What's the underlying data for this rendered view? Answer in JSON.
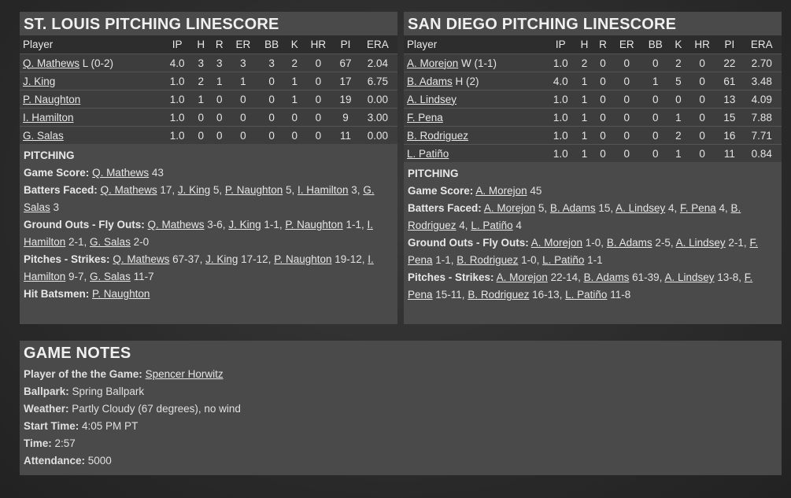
{
  "stl": {
    "title": "ST. LOUIS PITCHING LINESCORE",
    "headers": [
      "Player",
      "IP",
      "H",
      "R",
      "ER",
      "BB",
      "K",
      "HR",
      "PI",
      "ERA"
    ],
    "rows": [
      {
        "name": "Q. Mathews",
        "note": " L (0-2)",
        "stats": [
          "4.0",
          "3",
          "3",
          "3",
          "3",
          "2",
          "0",
          "67",
          "2.04"
        ]
      },
      {
        "name": "J. King",
        "note": "",
        "stats": [
          "1.0",
          "2",
          "1",
          "1",
          "0",
          "1",
          "0",
          "17",
          "6.75"
        ]
      },
      {
        "name": "P. Naughton",
        "note": "",
        "stats": [
          "1.0",
          "1",
          "0",
          "0",
          "0",
          "1",
          "0",
          "19",
          "0.00"
        ]
      },
      {
        "name": "I. Hamilton",
        "note": "",
        "stats": [
          "1.0",
          "0",
          "0",
          "0",
          "0",
          "0",
          "0",
          "9",
          "3.00"
        ]
      },
      {
        "name": "G. Salas",
        "note": "",
        "stats": [
          "1.0",
          "0",
          "0",
          "0",
          "0",
          "0",
          "0",
          "11",
          "0.00"
        ]
      }
    ],
    "pitching_heading": "PITCHING",
    "lines": [
      {
        "label": "Game Score:",
        "items": [
          {
            "name": "Q. Mathews",
            "value": " 43"
          }
        ]
      },
      {
        "label": "Batters Faced:",
        "items": [
          {
            "name": "Q. Mathews",
            "value": " 17, "
          },
          {
            "name": "J. King",
            "value": " 5, "
          },
          {
            "name": "P. Naughton",
            "value": " 5, "
          },
          {
            "name": "I. Hamilton",
            "value": " 3, "
          },
          {
            "name": "G. Salas",
            "value": " 3"
          }
        ]
      },
      {
        "label": "Ground Outs - Fly Outs:",
        "items": [
          {
            "name": "Q. Mathews",
            "value": " 3-6, "
          },
          {
            "name": "J. King",
            "value": " 1-1, "
          },
          {
            "name": "P. Naughton",
            "value": " 1-1, "
          },
          {
            "name": "I. Hamilton",
            "value": " 2-1, "
          },
          {
            "name": "G. Salas",
            "value": " 2-0"
          }
        ]
      },
      {
        "label": "Pitches - Strikes:",
        "items": [
          {
            "name": "Q. Mathews",
            "value": " 67-37, "
          },
          {
            "name": "J. King",
            "value": " 17-12, "
          },
          {
            "name": "P. Naughton",
            "value": " 19-12, "
          },
          {
            "name": "I. Hamilton",
            "value": " 9-7, "
          },
          {
            "name": "G. Salas",
            "value": " 11-7"
          }
        ]
      },
      {
        "label": "Hit Batsmen:",
        "items": [
          {
            "name": "P. Naughton",
            "value": ""
          }
        ]
      }
    ]
  },
  "sd": {
    "title": "SAN DIEGO PITCHING LINESCORE",
    "headers": [
      "Player",
      "IP",
      "H",
      "R",
      "ER",
      "BB",
      "K",
      "HR",
      "PI",
      "ERA"
    ],
    "rows": [
      {
        "name": "A. Morejon",
        "note": " W (1-1)",
        "stats": [
          "1.0",
          "2",
          "0",
          "0",
          "0",
          "2",
          "0",
          "22",
          "2.70"
        ]
      },
      {
        "name": "B. Adams",
        "note": " H (2)",
        "stats": [
          "4.0",
          "1",
          "0",
          "0",
          "1",
          "5",
          "0",
          "61",
          "3.48"
        ]
      },
      {
        "name": "A. Lindsey",
        "note": "",
        "stats": [
          "1.0",
          "1",
          "0",
          "0",
          "0",
          "0",
          "0",
          "13",
          "4.09"
        ]
      },
      {
        "name": "F. Pena",
        "note": "",
        "stats": [
          "1.0",
          "1",
          "0",
          "0",
          "0",
          "1",
          "0",
          "15",
          "7.88"
        ]
      },
      {
        "name": "B. Rodriguez",
        "note": "",
        "stats": [
          "1.0",
          "1",
          "0",
          "0",
          "0",
          "2",
          "0",
          "16",
          "7.71"
        ]
      },
      {
        "name": "L. Patiño",
        "note": "",
        "stats": [
          "1.0",
          "1",
          "0",
          "0",
          "0",
          "1",
          "0",
          "11",
          "0.84"
        ]
      }
    ],
    "pitching_heading": "PITCHING",
    "lines": [
      {
        "label": "Game Score:",
        "items": [
          {
            "name": "A. Morejon",
            "value": " 45"
          }
        ]
      },
      {
        "label": "Batters Faced:",
        "items": [
          {
            "name": "A. Morejon",
            "value": " 5, "
          },
          {
            "name": "B. Adams",
            "value": " 15, "
          },
          {
            "name": "A. Lindsey",
            "value": " 4, "
          },
          {
            "name": "F. Pena",
            "value": " 4, "
          },
          {
            "name": "B. Rodriguez",
            "value": " 4, "
          },
          {
            "name": "L. Patiño",
            "value": " 4"
          }
        ]
      },
      {
        "label": "Ground Outs - Fly Outs:",
        "items": [
          {
            "name": "A. Morejon",
            "value": " 1-0, "
          },
          {
            "name": "B. Adams",
            "value": " 2-5, "
          },
          {
            "name": "A. Lindsey",
            "value": " 2-1, "
          },
          {
            "name": "F. Pena",
            "value": " 1-1, "
          },
          {
            "name": "B. Rodriguez",
            "value": " 1-0, "
          },
          {
            "name": "L. Patiño",
            "value": " 1-1"
          }
        ]
      },
      {
        "label": "Pitches - Strikes:",
        "items": [
          {
            "name": "A. Morejon",
            "value": " 22-14, "
          },
          {
            "name": "B. Adams",
            "value": " 61-39, "
          },
          {
            "name": "A. Lindsey",
            "value": " 13-8, "
          },
          {
            "name": "F. Pena",
            "value": " 15-11, "
          },
          {
            "name": "B. Rodriguez",
            "value": " 16-13, "
          },
          {
            "name": "L. Patiño",
            "value": " 11-8"
          }
        ]
      }
    ]
  },
  "notes": {
    "title": "GAME NOTES",
    "potg_label": "Player of the the Game:",
    "potg_name": "Spencer Horwitz",
    "ballpark_label": "Ballpark:",
    "ballpark": " Spring Ballpark",
    "weather_label": "Weather:",
    "weather": " Partly Cloudy (67 degrees), no wind",
    "start_label": "Start Time:",
    "start": " 4:05 PM PT",
    "time_label": "Time:",
    "time": " 2:57",
    "attendance_label": "Attendance:",
    "attendance": " 5000"
  }
}
